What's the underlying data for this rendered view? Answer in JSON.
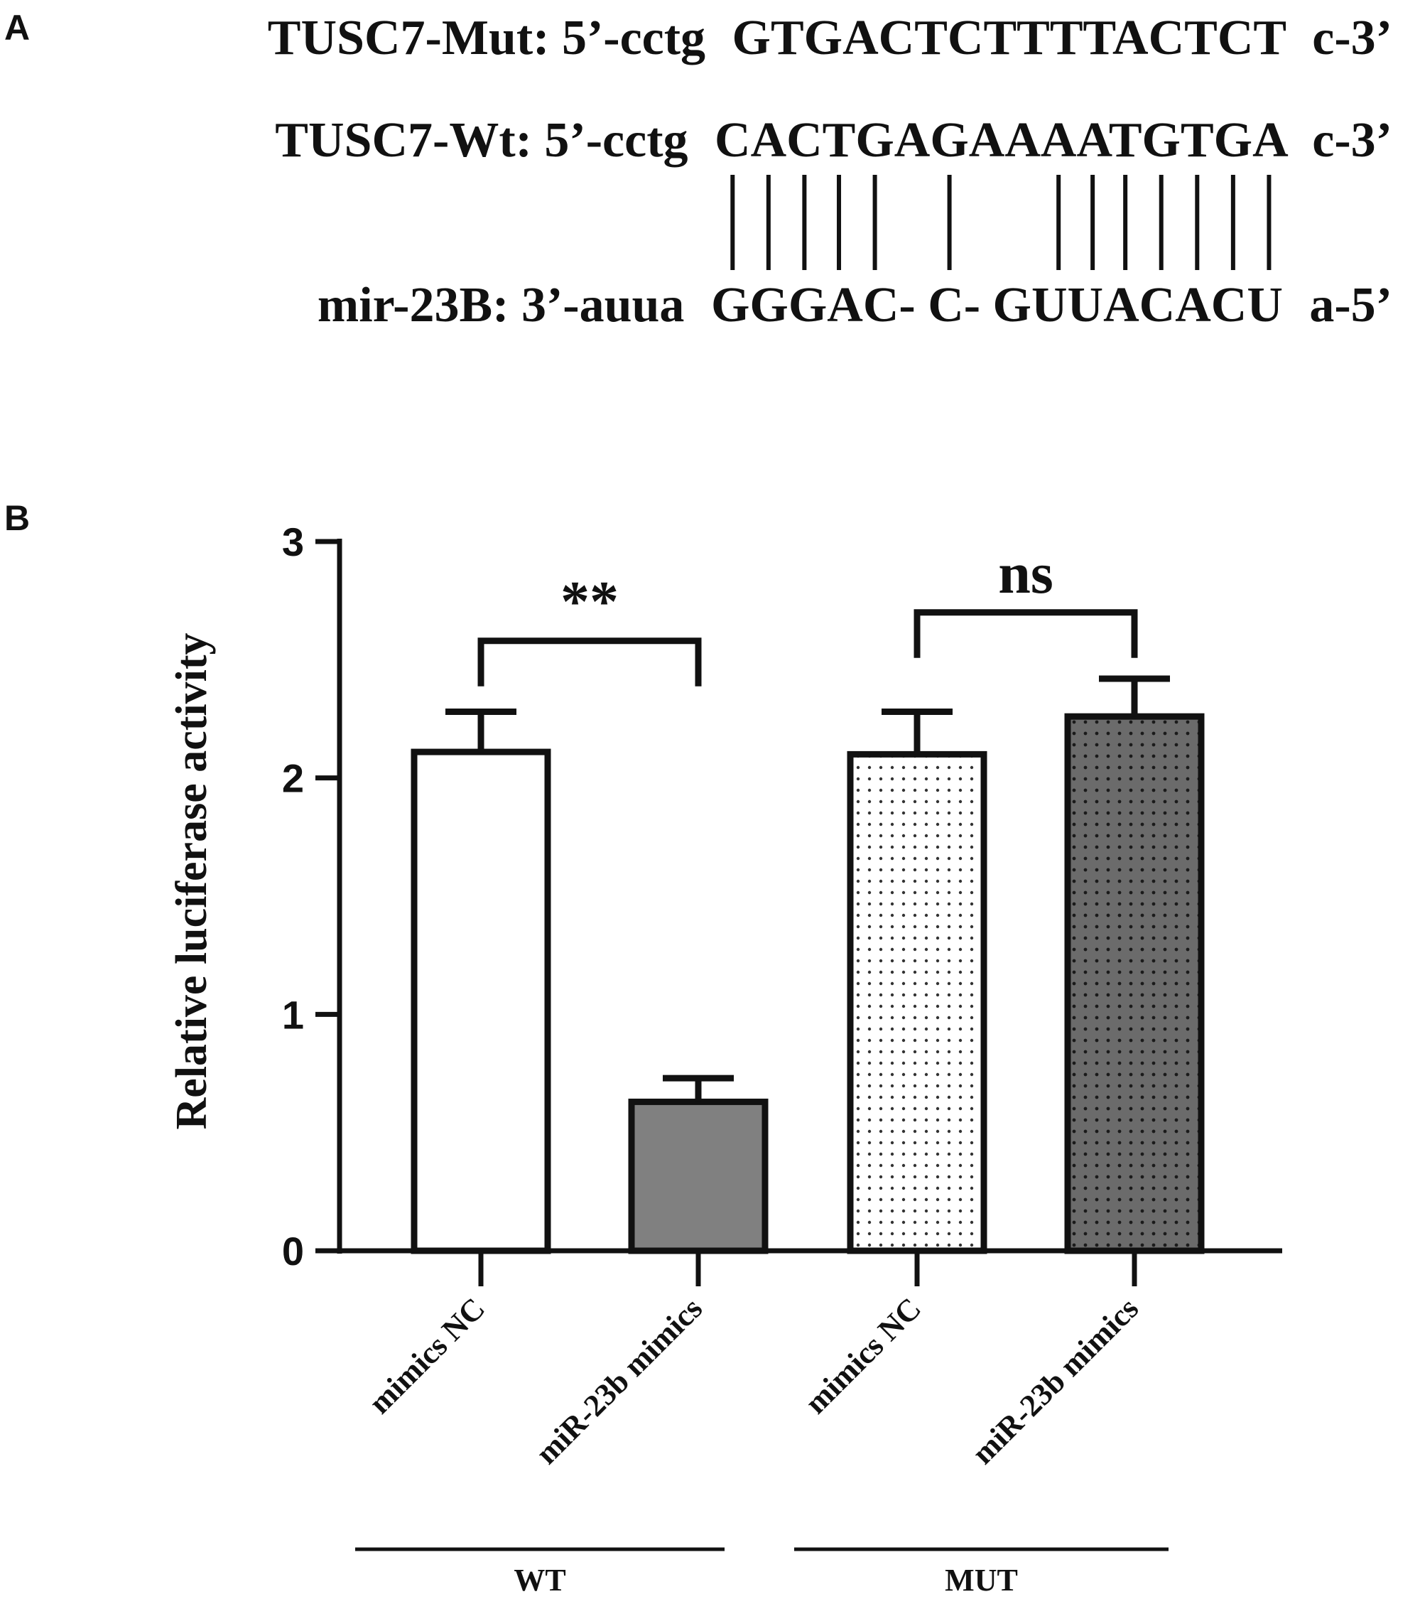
{
  "panel_a": {
    "label": "A",
    "mut": {
      "prefix": "TUSC7-Mut: 5’-cctg",
      "core": "GTGACTCTTTTACTCT",
      "suffix": "c-3’"
    },
    "wt": {
      "prefix": "TUSC7-Wt: 5’-cctg",
      "core": "CACTGAGAAAATGTGA",
      "suffix": "c-3’"
    },
    "mir": {
      "prefix": "mir-23B: 3’-auua",
      "core": "GGGAC- C- GUUACACU",
      "suffix": "a-5’"
    },
    "pairing_positions": [
      1,
      2,
      3,
      4,
      5,
      7,
      10,
      11,
      12,
      13,
      14,
      15,
      16
    ]
  },
  "panel_b": {
    "label": "B"
  },
  "colors": {
    "ink": "#111111",
    "bar_white": "#ffffff",
    "bar_gray": "#808080",
    "bar_dark_dotted": "#6b6b6b"
  },
  "chart_data": {
    "type": "bar",
    "title": "",
    "xlabel": "",
    "ylabel": "Relative luciferase activity",
    "ylim": [
      0,
      3
    ],
    "yticks": [
      0,
      1,
      2,
      3
    ],
    "grid": false,
    "categories": [
      "mimics NC",
      "miR-23b mimics",
      "mimics NC",
      "miR-23b mimics"
    ],
    "values": [
      2.11,
      0.63,
      2.1,
      2.26
    ],
    "errors": [
      0.17,
      0.1,
      0.18,
      0.16
    ],
    "fills": [
      "white",
      "gray",
      "white-dotted",
      "dark-dotted"
    ],
    "groups": [
      {
        "label": "WT",
        "categories": [
          0,
          1
        ]
      },
      {
        "label": "MUT",
        "categories": [
          2,
          3
        ]
      }
    ],
    "significance": [
      {
        "between": [
          0,
          1
        ],
        "label": "**",
        "bracket_level": 2.58
      },
      {
        "between": [
          2,
          3
        ],
        "label": "ns",
        "bracket_level": 2.7
      }
    ]
  }
}
